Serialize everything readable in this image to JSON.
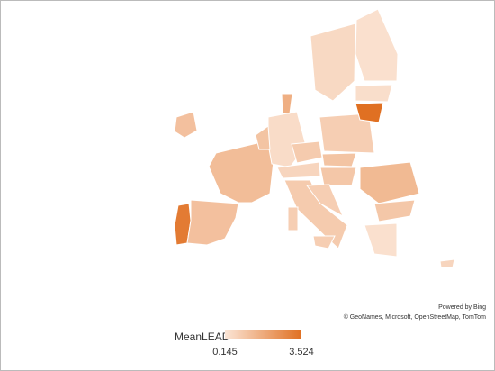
{
  "map": {
    "regions": [
      {
        "value": 3.2
      },
      {
        "value": 1.2
      },
      {
        "value": 1.3
      },
      {
        "value": 1.2
      },
      {
        "value": 0.4
      },
      {
        "value": 1.1
      },
      {
        "value": 1.7
      },
      {
        "value": 0.8
      },
      {
        "value": 3.524
      },
      {
        "value": 0.35
      },
      {
        "value": 0.3
      },
      {
        "value": 0.5
      },
      {
        "value": 0.9
      },
      {
        "value": 1.1
      },
      {
        "value": 0.6
      },
      {
        "value": 1.0
      },
      {
        "value": 1.4
      },
      {
        "value": 1.0
      },
      {
        "value": 0.9
      },
      {
        "value": 0.8
      },
      {
        "value": 0.3
      },
      {
        "value": 0.8
      },
      {
        "value": 0.8
      },
      {
        "value": 0.6
      }
    ]
  },
  "legend": {
    "title": "MeanLEAD",
    "min": 0.145,
    "max": 3.524,
    "colors": [
      "#fbe5d6",
      "#e07022"
    ]
  },
  "attribution": {
    "line1": "Powered by Bing",
    "line2": "© GeoNames, Microsoft, OpenStreetMap, TomTom"
  }
}
